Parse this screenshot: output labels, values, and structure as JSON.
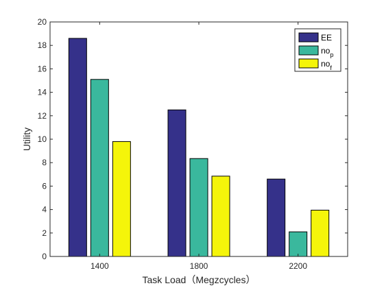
{
  "chart_data": {
    "type": "bar",
    "categories": [
      "1400",
      "1800",
      "2200"
    ],
    "series": [
      {
        "name": "EE",
        "values": [
          18.6,
          12.5,
          6.6
        ],
        "color": "#35318a"
      },
      {
        "name": "no_p",
        "values": [
          15.1,
          8.35,
          2.1
        ],
        "color": "#3ab89d"
      },
      {
        "name": "no_f",
        "values": [
          9.8,
          6.85,
          3.95
        ],
        "color": "#f5f50a"
      }
    ],
    "legend_labels": [
      {
        "base": "EE",
        "sub": ""
      },
      {
        "base": "no",
        "sub": "p"
      },
      {
        "base": "no",
        "sub": "f"
      }
    ],
    "xlabel": "Task Load（Megzcycles）",
    "ylabel": "Utility",
    "ylim": [
      0,
      20
    ],
    "yticks": [
      "0",
      "2",
      "4",
      "6",
      "8",
      "10",
      "12",
      "14",
      "16",
      "18",
      "20"
    ],
    "grid": false,
    "legend_position": "top-right"
  }
}
